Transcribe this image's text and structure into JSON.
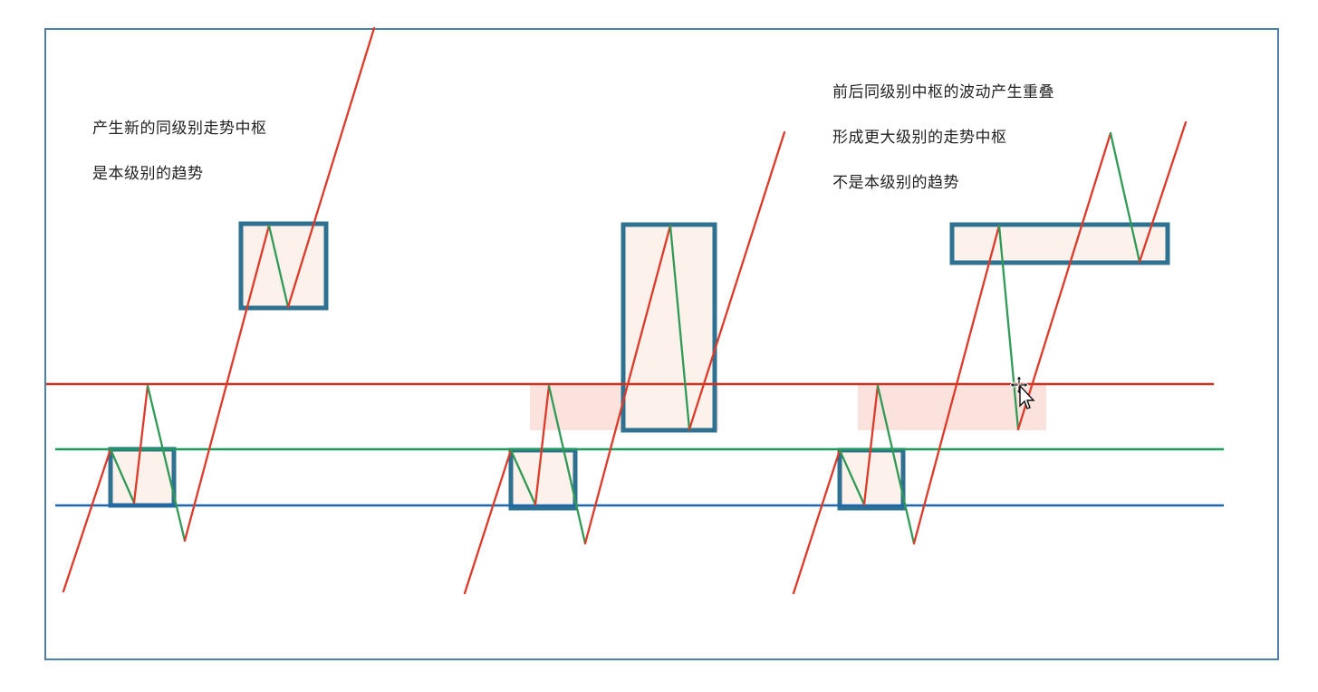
{
  "annotations": {
    "left": {
      "line1": "产生新的同级别走势中枢",
      "line2": "是本级别的趋势"
    },
    "right": {
      "line1": "前后同级别中枢的波动产生重叠",
      "line2": "形成更大级别的走势中枢",
      "line3": "不是本级别的趋势"
    }
  },
  "colors": {
    "frame": "#4f7ea6",
    "up_stroke": "#dd3a2a",
    "down_stroke": "#2f9a55",
    "box_border": "#2f7190",
    "box_fill": "#fdf1ec",
    "overlap_fill": "#fbd6cf",
    "red_level": "#cc3322",
    "green_level": "#1e9a5a",
    "blue_level": "#1d66b0"
  },
  "icons": [
    "move-cursor-icon"
  ]
}
